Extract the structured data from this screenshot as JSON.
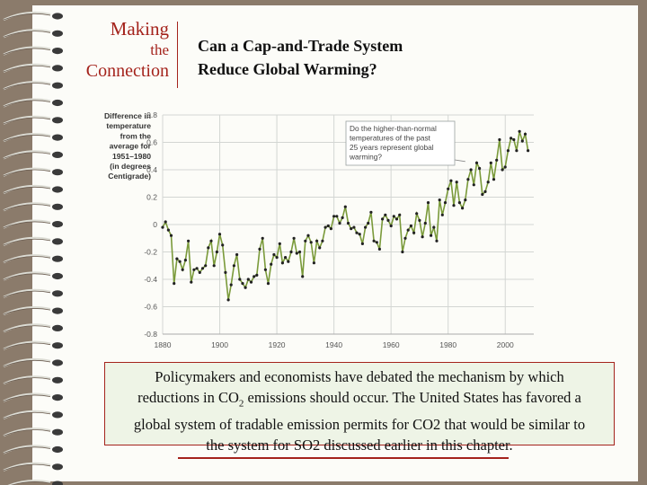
{
  "header": {
    "making": "Making",
    "the": "the",
    "connection": "Connection",
    "title_line1": "Can a Cap-and-Trade System",
    "title_line2": "Reduce Global Warming?"
  },
  "chart_data": {
    "type": "line",
    "ylabel_lines": [
      "Difference in",
      "temperature",
      "from the",
      "average for",
      "1951–1980",
      "(in degrees",
      "Centigrade)"
    ],
    "ylim": [
      -0.8,
      0.8
    ],
    "xlim": [
      1880,
      2010
    ],
    "yticks": [
      "0.8",
      "0.6",
      "0.4",
      "0.2",
      "0",
      "-0.2",
      "-0.4",
      "-0.6",
      "-0.8"
    ],
    "xticks": [
      "1880",
      "1900",
      "1920",
      "1940",
      "1960",
      "1980",
      "2000"
    ],
    "grid": true,
    "line_color": "#7a9a3a",
    "annotation_lines": [
      "Do the higher-than-normal",
      "temperatures of the past",
      "25 years represent global",
      "warming?"
    ],
    "annotation_target": [
      1986,
      0.46
    ],
    "series": [
      {
        "x": [
          1880,
          1881,
          1882,
          1883,
          1884,
          1885,
          1886,
          1887,
          1888,
          1889,
          1890,
          1891,
          1892,
          1893,
          1894,
          1895,
          1896,
          1897,
          1898,
          1899,
          1900,
          1901,
          1902,
          1903,
          1904,
          1905,
          1906,
          1907,
          1908,
          1909,
          1910,
          1911,
          1912,
          1913,
          1914,
          1915,
          1916,
          1917,
          1918,
          1919,
          1920,
          1921,
          1922,
          1923,
          1924,
          1925,
          1926,
          1927,
          1928,
          1929,
          1930,
          1931,
          1932,
          1933,
          1934,
          1935,
          1936,
          1937,
          1938,
          1939,
          1940,
          1941,
          1942,
          1943,
          1944,
          1945,
          1946,
          1947,
          1948,
          1949,
          1950,
          1951,
          1952,
          1953,
          1954,
          1955,
          1956,
          1957,
          1958,
          1959,
          1960,
          1961,
          1962,
          1963,
          1964,
          1965,
          1966,
          1967,
          1968,
          1969,
          1970,
          1971,
          1972,
          1973,
          1974,
          1975,
          1976,
          1977,
          1978,
          1979,
          1980,
          1981,
          1982,
          1983,
          1984,
          1985,
          1986,
          1987,
          1988,
          1989,
          1990,
          1991,
          1992,
          1993,
          1994,
          1995,
          1996,
          1997,
          1998,
          1999,
          2000,
          2001,
          2002,
          2003,
          2004,
          2005,
          2006,
          2007,
          2008
        ],
        "y": [
          -0.02,
          0.02,
          -0.04,
          -0.08,
          -0.43,
          -0.25,
          -0.27,
          -0.33,
          -0.26,
          -0.12,
          -0.42,
          -0.33,
          -0.32,
          -0.35,
          -0.32,
          -0.3,
          -0.17,
          -0.12,
          -0.3,
          -0.2,
          -0.07,
          -0.15,
          -0.35,
          -0.55,
          -0.44,
          -0.3,
          -0.22,
          -0.4,
          -0.43,
          -0.46,
          -0.4,
          -0.42,
          -0.38,
          -0.37,
          -0.18,
          -0.1,
          -0.33,
          -0.43,
          -0.29,
          -0.22,
          -0.24,
          -0.14,
          -0.28,
          -0.24,
          -0.27,
          -0.2,
          -0.1,
          -0.21,
          -0.2,
          -0.38,
          -0.12,
          -0.08,
          -0.13,
          -0.28,
          -0.12,
          -0.17,
          -0.12,
          -0.02,
          -0.01,
          -0.03,
          0.06,
          0.06,
          0.01,
          0.05,
          0.13,
          0.01,
          -0.03,
          -0.02,
          -0.06,
          -0.07,
          -0.14,
          -0.02,
          0.01,
          0.09,
          -0.12,
          -0.13,
          -0.18,
          0.04,
          0.07,
          0.03,
          -0.01,
          0.06,
          0.04,
          0.07,
          -0.2,
          -0.1,
          -0.04,
          -0.01,
          -0.06,
          0.08,
          0.03,
          -0.09,
          0.01,
          0.16,
          -0.08,
          -0.02,
          -0.12,
          0.18,
          0.07,
          0.16,
          0.26,
          0.32,
          0.14,
          0.31,
          0.16,
          0.12,
          0.18,
          0.33,
          0.4,
          0.29,
          0.45,
          0.41,
          0.22,
          0.24,
          0.31,
          0.45,
          0.33,
          0.47,
          0.62,
          0.4,
          0.42,
          0.54,
          0.63,
          0.62,
          0.54,
          0.68,
          0.61,
          0.66,
          0.54
        ]
      }
    ]
  },
  "caption": {
    "line1": "Policymakers and economists have debated the mechanism by which",
    "line2_a": "reductions in CO",
    "line2_sub": "2",
    "line2_b": " emissions should occur. The United States has favored a",
    "line3": "global system of tradable emission permits for CO2 that would be similar to",
    "line4": "the system for SO2 discussed earlier in this chapter."
  }
}
